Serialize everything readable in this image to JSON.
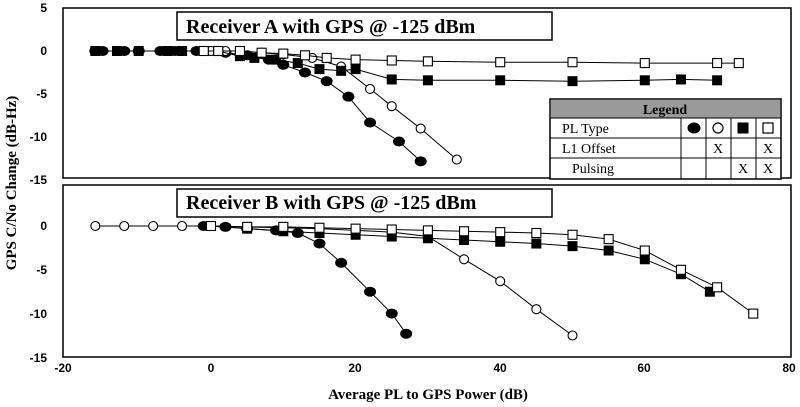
{
  "ylabel": "GPS C/No Change (dB-Hz)",
  "xlabel": "Average PL to GPS Power (dB)",
  "x_ticks": [
    "-20",
    "0",
    "20",
    "40",
    "60",
    "80"
  ],
  "panelA_y_ticks": [
    "5",
    "0",
    "-5",
    "-10",
    "-15"
  ],
  "panelB_y_ticks": [
    "0",
    "-5",
    "-10",
    "-15"
  ],
  "legend": {
    "title": "Legend",
    "row_labels": [
      "PL Type",
      "L1 Offset",
      "Pulsing"
    ],
    "l1_offset_marks": [
      "",
      "X",
      "",
      "X"
    ],
    "pulsing_marks": [
      "",
      "",
      "X",
      "X"
    ]
  },
  "chart_data": [
    {
      "type": "line",
      "title": "Receiver A with GPS @ -125 dBm",
      "xlim": [
        -20,
        80
      ],
      "ylim": [
        -15,
        5
      ],
      "series": [
        {
          "marker": "filled-circle",
          "x": [
            -16,
            -15,
            -12,
            -10,
            -7,
            -5,
            -2,
            0,
            2,
            5,
            8,
            10,
            13,
            16,
            19,
            22,
            26,
            29
          ],
          "y": [
            0,
            0,
            0,
            0,
            0,
            0,
            0,
            0,
            -0.2,
            -0.5,
            -1.0,
            -1.6,
            -2.5,
            -3.5,
            -5.3,
            -8.3,
            -10.5,
            -12.8
          ]
        },
        {
          "marker": "open-circle",
          "x": [
            0,
            2,
            4,
            7,
            10,
            14,
            18,
            22,
            25,
            29,
            34
          ],
          "y": [
            0,
            0,
            0,
            -0.2,
            -0.4,
            -0.8,
            -1.8,
            -4.4,
            -6.4,
            -9.0,
            -12.6
          ]
        },
        {
          "marker": "filled-square",
          "x": [
            -16,
            -13,
            -10,
            -6,
            -4,
            -1,
            1,
            4,
            6,
            9,
            12,
            15,
            18,
            20,
            25,
            30,
            40,
            50,
            60,
            65,
            70
          ],
          "y": [
            0,
            0,
            0,
            0,
            0,
            0,
            0,
            -0.6,
            -0.8,
            -1.0,
            -1.4,
            -2.1,
            -2.3,
            -2.1,
            -3.3,
            -3.4,
            -3.4,
            -3.5,
            -3.4,
            -3.3,
            -3.4
          ]
        },
        {
          "marker": "open-square",
          "x": [
            -1,
            1,
            4,
            7,
            10,
            13,
            16,
            20,
            25,
            30,
            40,
            50,
            60,
            70,
            73
          ],
          "y": [
            0,
            0,
            0,
            -0.2,
            -0.3,
            -0.5,
            -0.8,
            -1.0,
            -1.1,
            -1.2,
            -1.3,
            -1.3,
            -1.4,
            -1.4,
            -1.4
          ]
        }
      ]
    },
    {
      "type": "line",
      "title": "Receiver B with GPS @ -125 dBm",
      "xlim": [
        -20,
        80
      ],
      "ylim": [
        -15,
        2
      ],
      "series": [
        {
          "marker": "filled-circle",
          "x": [
            -1,
            2,
            5,
            9,
            12,
            15,
            18,
            22,
            25,
            27
          ],
          "y": [
            0,
            -0.1,
            -0.3,
            -0.5,
            -0.8,
            -2.0,
            -4.2,
            -7.5,
            -10.0,
            -12.3
          ]
        },
        {
          "marker": "open-circle",
          "x": [
            -16,
            -12,
            -8,
            -4,
            0,
            5,
            10,
            15,
            20,
            25,
            30,
            35,
            40,
            45,
            50
          ],
          "y": [
            0,
            0,
            0,
            0,
            0,
            -0.1,
            -0.2,
            -0.3,
            -0.5,
            -0.7,
            -1.2,
            -3.8,
            -6.3,
            -9.5,
            -12.5
          ]
        },
        {
          "marker": "filled-square",
          "x": [
            0,
            5,
            10,
            15,
            20,
            25,
            30,
            35,
            40,
            45,
            50,
            55,
            60,
            65,
            69
          ],
          "y": [
            0,
            -0.3,
            -0.6,
            -0.8,
            -1.0,
            -1.2,
            -1.4,
            -1.6,
            -1.8,
            -2.0,
            -2.3,
            -2.8,
            -3.8,
            -5.5,
            -7.5
          ]
        },
        {
          "marker": "open-square",
          "x": [
            0,
            5,
            10,
            15,
            20,
            25,
            30,
            35,
            40,
            45,
            50,
            55,
            60,
            65,
            70,
            75
          ],
          "y": [
            0,
            -0.1,
            -0.1,
            -0.2,
            -0.3,
            -0.4,
            -0.5,
            -0.6,
            -0.7,
            -0.8,
            -1.0,
            -1.5,
            -2.8,
            -5.0,
            -7.0,
            -10.0
          ]
        }
      ]
    }
  ]
}
